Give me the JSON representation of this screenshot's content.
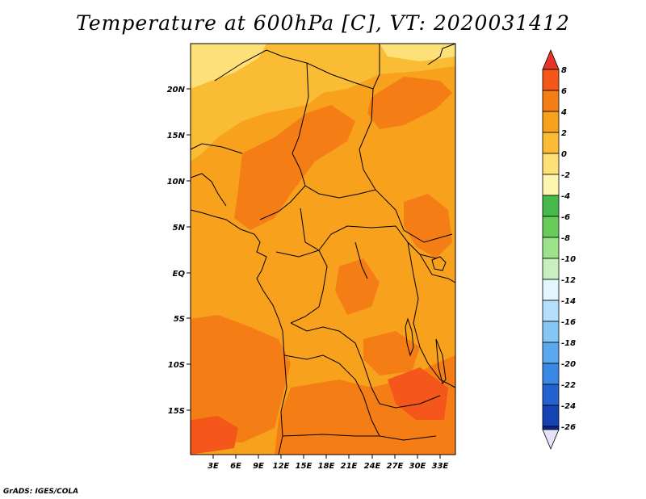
{
  "title": "Temperature at 600hPa [C], VT: 2020031412",
  "footer": "GrADS: IGES/COLA",
  "map": {
    "lat_labels": [
      "20N",
      "15N",
      "10N",
      "5N",
      "EQ",
      "5S",
      "10S",
      "15S"
    ],
    "lon_labels": [
      "3E",
      "6E",
      "9E",
      "12E",
      "15E",
      "18E",
      "21E",
      "24E",
      "27E",
      "30E",
      "33E"
    ]
  },
  "colorbar": {
    "labels": [
      "8",
      "6",
      "4",
      "2",
      "0",
      "-2",
      "-4",
      "-6",
      "-8",
      "-10",
      "-12",
      "-14",
      "-16",
      "-18",
      "-20",
      "-22",
      "-24",
      "-26"
    ],
    "colors": [
      "#e8322a",
      "#f5561a",
      "#f57d16",
      "#f7a11c",
      "#fbbc35",
      "#fde077",
      "#fdf5b0",
      "#47b84a",
      "#68cc5a",
      "#9ee28e",
      "#c8f0bf",
      "#e3f5fd",
      "#b5e0fb",
      "#84c7f6",
      "#5aa9ef",
      "#3b87e4",
      "#2363cf",
      "#1543b3",
      "#0a2384",
      "#e4e2f9"
    ]
  }
}
